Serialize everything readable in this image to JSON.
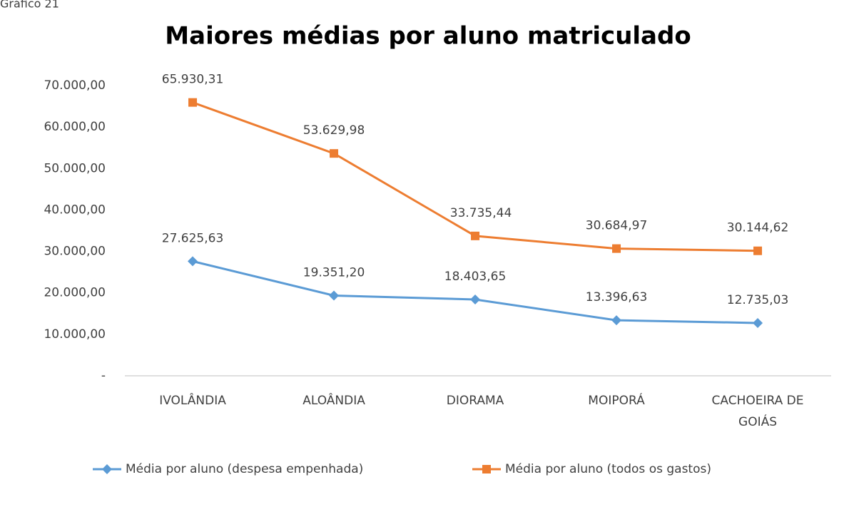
{
  "chart_data": {
    "type": "line",
    "caption": "Gráfico 21",
    "title": "Maiores médias por aluno matriculado",
    "categories": [
      "IVOLÂNDIA",
      "ALOÂNDIA",
      "DIORAMA",
      "MOIPORÁ",
      "CACHOEIRA DE GOIÁS"
    ],
    "series": [
      {
        "name": "Média por aluno (despesa empenhada)",
        "color": "#5b9bd5",
        "marker": "diamond",
        "values": [
          27625.63,
          19351.2,
          18403.65,
          13396.63,
          12735.03
        ],
        "value_labels": [
          "27.625,63",
          "19.351,20",
          "18.403,65",
          "13.396,63",
          "12.735,03"
        ]
      },
      {
        "name": "Média por aluno (todos os gastos)",
        "color": "#ed7d31",
        "marker": "square",
        "values": [
          65930.31,
          53629.98,
          33735.44,
          30684.97,
          30144.62
        ],
        "value_labels": [
          "65.930,31",
          "53.629,98",
          "33.735,44",
          "30.684,97",
          "30.144,62"
        ]
      }
    ],
    "ylim": [
      0,
      70000
    ],
    "yticks": [
      {
        "value": 0,
        "label": "-"
      },
      {
        "value": 10000,
        "label": "10.000,00"
      },
      {
        "value": 20000,
        "label": "20.000,00"
      },
      {
        "value": 30000,
        "label": "30.000,00"
      },
      {
        "value": 40000,
        "label": "40.000,00"
      },
      {
        "value": 50000,
        "label": "50.000,00"
      },
      {
        "value": 60000,
        "label": "60.000,00"
      },
      {
        "value": 70000,
        "label": "70.000,00"
      }
    ],
    "grid": false,
    "legend": "bottom"
  }
}
